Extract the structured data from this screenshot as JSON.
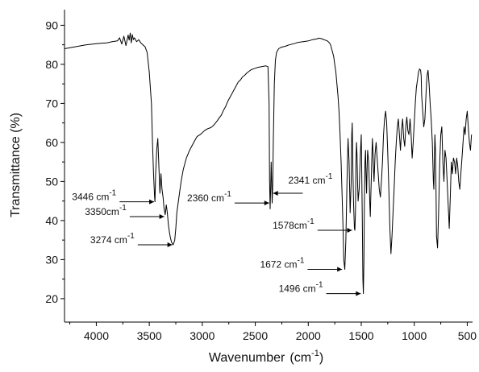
{
  "chart_data": {
    "type": "line",
    "title": "",
    "xlabel": "Wavenumber",
    "xlabel_unit_base": "(cm",
    "xlabel_unit_exp": "-1",
    "xlabel_unit_close": ")",
    "ylabel": "Transmittance (%)",
    "xlim": [
      4300,
      450
    ],
    "ylim": [
      14,
      94
    ],
    "x_reversed": true,
    "grid": false,
    "legend": "none",
    "line_color": "#000000",
    "xticks": [
      4000,
      3500,
      3000,
      2500,
      2000,
      1500,
      1000,
      500
    ],
    "yticks": [
      20,
      30,
      40,
      50,
      60,
      70,
      80,
      90
    ],
    "series": [
      {
        "x": [
          4300,
          4200,
          4100,
          4000,
          3900,
          3850,
          3800,
          3780,
          3760,
          3740,
          3720,
          3700,
          3690,
          3680,
          3670,
          3660,
          3650,
          3640,
          3620,
          3600,
          3580,
          3560,
          3540,
          3520,
          3500,
          3480,
          3470,
          3460,
          3450,
          3446,
          3440,
          3430,
          3420,
          3410,
          3400,
          3390,
          3380,
          3370,
          3360,
          3350,
          3340,
          3330,
          3320,
          3310,
          3300,
          3290,
          3280,
          3274,
          3260,
          3250,
          3240,
          3220,
          3200,
          3180,
          3150,
          3120,
          3100,
          3080,
          3050,
          3020,
          3000,
          2980,
          2950,
          2920,
          2900,
          2880,
          2860,
          2840,
          2820,
          2800,
          2780,
          2760,
          2740,
          2720,
          2700,
          2680,
          2660,
          2640,
          2620,
          2600,
          2580,
          2560,
          2540,
          2520,
          2500,
          2480,
          2460,
          2440,
          2420,
          2400,
          2380,
          2370,
          2365,
          2360,
          2355,
          2350,
          2345,
          2341,
          2335,
          2330,
          2320,
          2310,
          2300,
          2280,
          2260,
          2240,
          2220,
          2200,
          2180,
          2150,
          2120,
          2100,
          2050,
          2000,
          1960,
          1920,
          1900,
          1880,
          1860,
          1840,
          1820,
          1800,
          1790,
          1780,
          1770,
          1760,
          1750,
          1740,
          1730,
          1720,
          1710,
          1700,
          1690,
          1680,
          1672,
          1665,
          1655,
          1645,
          1635,
          1625,
          1615,
          1605,
          1595,
          1590,
          1585,
          1578,
          1572,
          1565,
          1560,
          1555,
          1550,
          1545,
          1540,
          1535,
          1530,
          1520,
          1510,
          1500,
          1496,
          1490,
          1485,
          1480,
          1475,
          1470,
          1465,
          1460,
          1455,
          1450,
          1445,
          1440,
          1430,
          1425,
          1420,
          1415,
          1410,
          1405,
          1400,
          1395,
          1390,
          1385,
          1380,
          1375,
          1370,
          1360,
          1350,
          1340,
          1330,
          1320,
          1310,
          1300,
          1290,
          1280,
          1270,
          1260,
          1250,
          1240,
          1230,
          1220,
          1210,
          1200,
          1190,
          1180,
          1170,
          1160,
          1150,
          1140,
          1130,
          1120,
          1110,
          1100,
          1090,
          1080,
          1070,
          1060,
          1050,
          1040,
          1030,
          1020,
          1010,
          1000,
          990,
          980,
          970,
          960,
          950,
          940,
          935,
          930,
          920,
          910,
          900,
          890,
          880,
          870,
          860,
          850,
          840,
          830,
          820,
          815,
          810,
          805,
          800,
          795,
          790,
          780,
          770,
          760,
          750,
          740,
          730,
          720,
          710,
          700,
          690,
          680,
          670,
          660,
          650,
          640,
          630,
          620,
          610,
          600,
          590,
          580,
          570,
          560,
          550,
          540,
          530,
          520,
          510,
          500,
          490,
          480,
          470,
          460
        ],
        "y": [
          84.0,
          84.5,
          85.0,
          85.3,
          85.5,
          85.8,
          86.0,
          86.8,
          85.2,
          87.2,
          84.8,
          87.5,
          86.2,
          88.0,
          85.5,
          87.6,
          86.3,
          86.8,
          85.8,
          86.3,
          85.5,
          85.0,
          84.5,
          83.0,
          78.0,
          70.0,
          60.0,
          52.0,
          46.0,
          44.8,
          52.0,
          58.0,
          61.0,
          54.0,
          47.0,
          52.0,
          48.0,
          46.0,
          43.0,
          41.5,
          44.0,
          42.0,
          39.0,
          37.0,
          35.5,
          34.5,
          34.0,
          33.8,
          35.0,
          38.0,
          42.0,
          46.0,
          50.0,
          53.0,
          56.0,
          58.0,
          59.0,
          60.0,
          61.5,
          62.0,
          62.5,
          63.0,
          63.5,
          63.8,
          64.2,
          64.8,
          65.5,
          66.3,
          67.0,
          68.2,
          69.2,
          70.5,
          71.5,
          72.5,
          73.5,
          74.5,
          75.5,
          76.0,
          76.8,
          77.2,
          77.8,
          78.2,
          78.6,
          78.8,
          79.0,
          79.2,
          79.3,
          79.4,
          79.5,
          79.6,
          79.4,
          70.0,
          50.0,
          43.0,
          48.0,
          55.0,
          50.0,
          44.5,
          50.0,
          60.0,
          75.0,
          81.0,
          83.0,
          84.0,
          84.3,
          84.5,
          84.6,
          84.8,
          85.0,
          85.2,
          85.4,
          85.6,
          85.8,
          86.0,
          86.3,
          86.5,
          86.7,
          86.6,
          86.4,
          86.2,
          86.0,
          85.5,
          85.0,
          84.0,
          83.0,
          82.0,
          80.0,
          78.0,
          75.0,
          72.0,
          68.0,
          62.0,
          55.0,
          46.0,
          38.0,
          30.0,
          27.5,
          35.0,
          50.0,
          61.0,
          55.0,
          42.0,
          50.0,
          62.0,
          65.0,
          52.0,
          44.0,
          38.0,
          37.5,
          42.0,
          55.0,
          60.0,
          57.0,
          50.0,
          45.0,
          48.0,
          56.0,
          62.0,
          54.0,
          40.0,
          25.0,
          21.3,
          30.0,
          45.0,
          55.0,
          58.0,
          52.0,
          47.0,
          53.0,
          58.0,
          55.0,
          50.0,
          45.0,
          41.0,
          46.0,
          51.0,
          56.0,
          61.0,
          58.0,
          54.0,
          50.0,
          53.0,
          57.0,
          60.0,
          56.0,
          52.0,
          48.0,
          46.0,
          50.0,
          55.0,
          62.0,
          66.0,
          68.0,
          65.0,
          57.0,
          48.0,
          38.0,
          31.5,
          36.0,
          42.0,
          48.0,
          55.0,
          60.0,
          64.0,
          66.0,
          62.0,
          58.0,
          63.0,
          66.0,
          61.0,
          59.0,
          64.0,
          66.5,
          63.0,
          62.0,
          66.0,
          62.0,
          56.0,
          60.0,
          65.0,
          70.0,
          74.0,
          76.0,
          78.0,
          78.8,
          78.5,
          77.0,
          72.0,
          68.0,
          64.0,
          66.0,
          72.0,
          77.0,
          78.5,
          75.0,
          70.0,
          66.0,
          60.0,
          50.0,
          48.0,
          56.0,
          62.0,
          58.0,
          48.0,
          36.0,
          33.0,
          42.0,
          55.0,
          62.0,
          64.0,
          55.0,
          50.0,
          58.0,
          56.0,
          50.0,
          44.0,
          38.0,
          46.0,
          55.0,
          52.0,
          56.0,
          55.0,
          52.0,
          56.0,
          54.0,
          50.0,
          48.0,
          52.0,
          56.0,
          60.0,
          64.0,
          62.0,
          66.0,
          68.0,
          64.0,
          60.0,
          58.0,
          62.0
        ]
      }
    ],
    "annotations": [
      {
        "label": "3446 cm",
        "exp": "-1",
        "target_x": 3446,
        "target_y": 44.8,
        "side": "left"
      },
      {
        "label": "3350cm",
        "exp": "-1",
        "target_x": 3350,
        "target_y": 41.0,
        "side": "left"
      },
      {
        "label": "3274 cm",
        "exp": "-1",
        "target_x": 3274,
        "target_y": 33.8,
        "side": "left"
      },
      {
        "label": "2360 cm",
        "exp": "-1",
        "target_x": 2360,
        "target_y": 44.5,
        "side": "left"
      },
      {
        "label": "2341 cm",
        "exp": "-1",
        "target_x": 2341,
        "target_y": 47.0,
        "side": "right"
      },
      {
        "label": "1578cm",
        "exp": "-1",
        "target_x": 1578,
        "target_y": 37.5,
        "side": "left"
      },
      {
        "label": "1672 cm",
        "exp": "-1",
        "target_x": 1672,
        "target_y": 27.5,
        "side": "left"
      },
      {
        "label": "1496 cm",
        "exp": "-1",
        "target_x": 1496,
        "target_y": 21.3,
        "side": "left"
      }
    ]
  }
}
